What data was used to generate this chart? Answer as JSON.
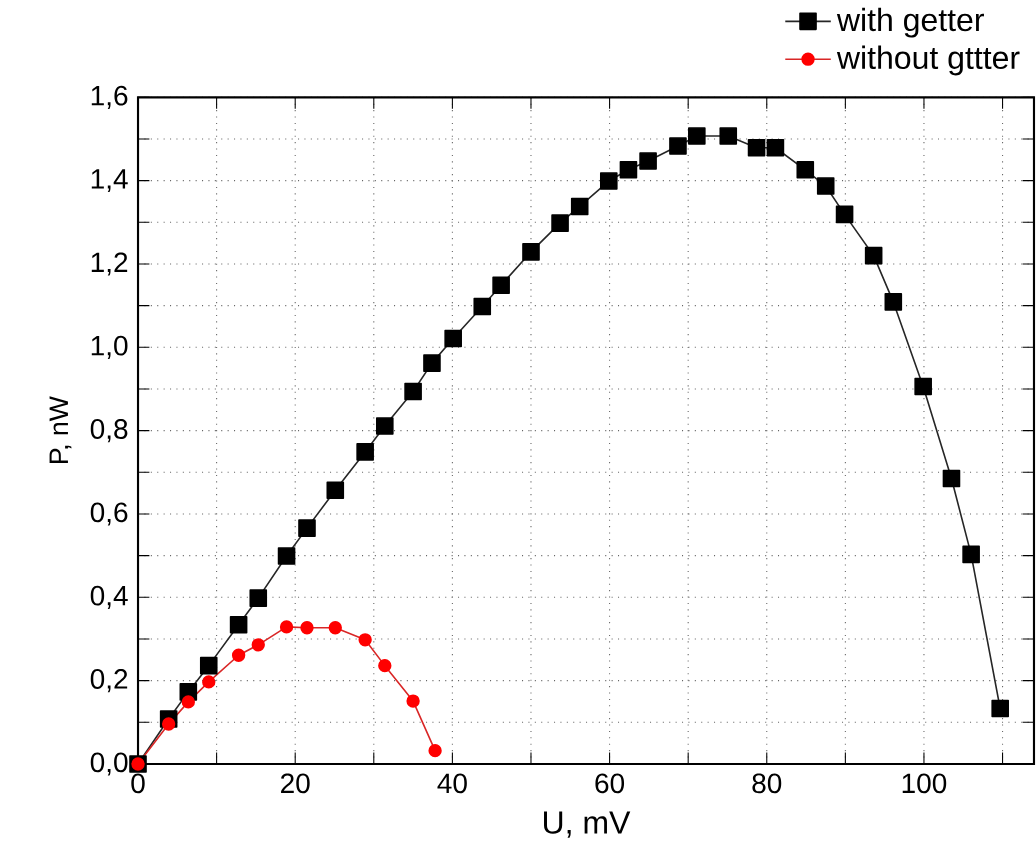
{
  "chart_data": {
    "type": "line",
    "xlabel": "U, mV",
    "ylabel": "P, nW",
    "xlim": [
      0,
      114
    ],
    "ylim": [
      0,
      1.6
    ],
    "xticks": [
      0,
      {
        "value": 10,
        "label": null
      },
      20,
      {
        "value": 30,
        "label": null
      },
      40,
      {
        "value": 50,
        "label": null
      },
      60,
      {
        "value": 70,
        "label": null
      },
      80,
      {
        "value": 90,
        "label": null
      },
      100,
      {
        "value": 110,
        "label": null
      }
    ],
    "yticks": [
      {
        "value": 0,
        "label": "0,0"
      },
      {
        "value": 0.1,
        "label": null
      },
      {
        "value": 0.2,
        "label": "0,2"
      },
      {
        "value": 0.3,
        "label": null
      },
      {
        "value": 0.4,
        "label": "0,4"
      },
      {
        "value": 0.5,
        "label": null
      },
      {
        "value": 0.6,
        "label": "0,6"
      },
      {
        "value": 0.7,
        "label": null
      },
      {
        "value": 0.8,
        "label": "0,8"
      },
      {
        "value": 0.9,
        "label": null
      },
      {
        "value": 1.0,
        "label": "1,0"
      },
      {
        "value": 1.1,
        "label": null
      },
      {
        "value": 1.2,
        "label": "1,2"
      },
      {
        "value": 1.3,
        "label": null
      },
      {
        "value": 1.4,
        "label": "1,4"
      },
      {
        "value": 1.5,
        "label": null
      },
      {
        "value": 1.6,
        "label": "1,6"
      }
    ],
    "grid": true,
    "legend": "top right",
    "series": [
      {
        "name": "with getter",
        "color": "#000000",
        "marker": "square",
        "x": [
          0,
          3.9,
          6.4,
          9.0,
          12.8,
          15.3,
          18.9,
          21.5,
          25.1,
          28.9,
          31.4,
          35.0,
          37.4,
          40.1,
          43.8,
          46.2,
          50.0,
          53.7,
          56.2,
          59.9,
          62.4,
          64.9,
          68.7,
          71.1,
          75.1,
          78.7,
          81.1,
          84.9,
          87.5,
          89.9,
          93.6,
          96.1,
          99.9,
          103.5,
          106.0,
          109.7
        ],
        "values": [
          0,
          0.108,
          0.173,
          0.236,
          0.334,
          0.398,
          0.499,
          0.566,
          0.657,
          0.749,
          0.811,
          0.894,
          0.962,
          1.021,
          1.098,
          1.149,
          1.229,
          1.298,
          1.338,
          1.399,
          1.426,
          1.447,
          1.483,
          1.507,
          1.507,
          1.479,
          1.479,
          1.426,
          1.387,
          1.319,
          1.22,
          1.109,
          0.906,
          0.685,
          0.503,
          0.133
        ]
      },
      {
        "name": "without gttter",
        "color": "#ff0000",
        "marker": "circle",
        "x": [
          0,
          3.9,
          6.4,
          9.0,
          12.8,
          15.3,
          18.9,
          21.5,
          25.1,
          28.9,
          31.4,
          35.0,
          37.8
        ],
        "values": [
          0,
          0.096,
          0.149,
          0.197,
          0.261,
          0.286,
          0.329,
          0.327,
          0.327,
          0.298,
          0.236,
          0.151,
          0.032
        ]
      }
    ]
  }
}
